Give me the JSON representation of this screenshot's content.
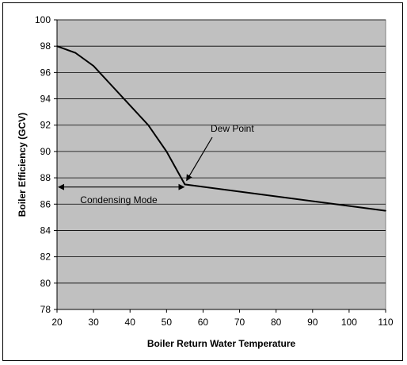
{
  "chart_data": {
    "type": "line",
    "xlabel": "Boiler Return Water Temperature",
    "ylabel": "Boiler Efficiency (GCV)",
    "xlim": [
      20,
      110
    ],
    "ylim": [
      78,
      100
    ],
    "x_ticks": [
      20,
      30,
      40,
      50,
      60,
      70,
      80,
      90,
      100,
      110
    ],
    "y_ticks": [
      78,
      80,
      82,
      84,
      86,
      88,
      90,
      92,
      94,
      96,
      98,
      100
    ],
    "grid": "horizontal",
    "plot_background": "#c0c0c0",
    "line_color": "#000000",
    "series": [
      {
        "x": [
          20,
          25,
          30,
          35,
          40,
          45,
          50,
          55,
          110
        ],
        "y": [
          98.0,
          97.5,
          96.5,
          95.0,
          93.5,
          92.0,
          90.0,
          87.5,
          85.5
        ]
      }
    ],
    "annotations": {
      "dew_point": {
        "text": "Dew Point",
        "arrow_to": [
          55.5,
          87.8
        ]
      },
      "condensing_mode": {
        "text": "Condensing Mode",
        "from_x": 20,
        "to_x": 55,
        "y": 87.3
      }
    }
  }
}
